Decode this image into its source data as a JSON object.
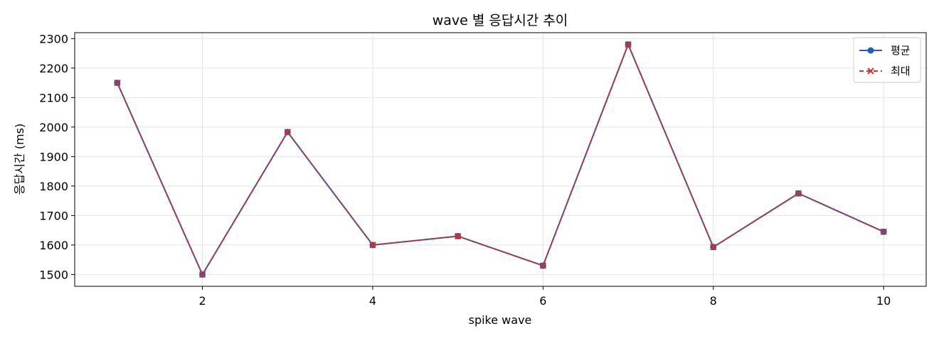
{
  "chart_data": {
    "type": "line",
    "title": "wave 별 응답시간 추이",
    "xlabel": "spike wave",
    "ylabel": "응답시간 (ms)",
    "xlim": [
      0.5,
      10.5
    ],
    "ylim": [
      1460,
      2320
    ],
    "xticks": [
      2,
      4,
      6,
      8,
      10
    ],
    "yticks": [
      1500,
      1600,
      1700,
      1800,
      1900,
      2000,
      2100,
      2200,
      2300
    ],
    "grid": true,
    "legend_position": "top-right",
    "x": [
      1,
      2,
      3,
      4,
      5,
      6,
      7,
      8,
      9,
      10
    ],
    "series": [
      {
        "name": "평균",
        "values": [
          2150,
          1500,
          1983,
          1600,
          1630,
          1530,
          2280,
          1593,
          1775,
          1645
        ],
        "color": "#1f5fb4",
        "marker": "circle",
        "line": "solid"
      },
      {
        "name": "최대",
        "values": [
          2150,
          1500,
          1983,
          1600,
          1630,
          1530,
          2280,
          1593,
          1775,
          1645
        ],
        "color": "#d0302f",
        "marker": "x",
        "line": "dashed"
      }
    ]
  }
}
